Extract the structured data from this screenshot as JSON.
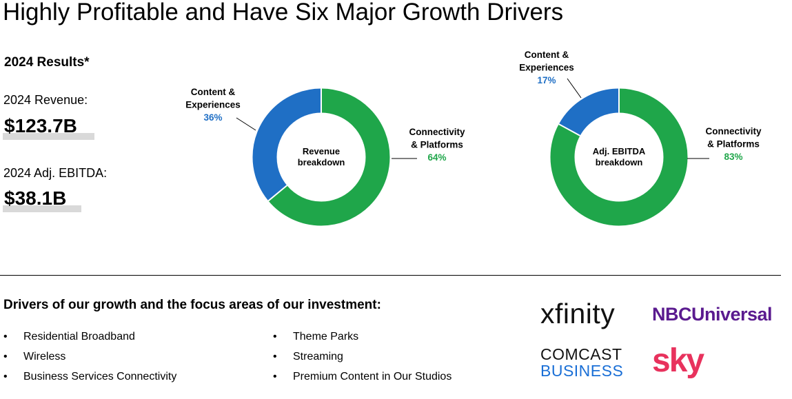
{
  "title": "Highly Profitable and Have Six Major Growth Drivers",
  "results": {
    "heading": "2024 Results*",
    "revenue_label": "2024 Revenue:",
    "revenue_value": "$123.7B",
    "ebitda_label": "2024 Adj. EBITDA:",
    "ebitda_value": "$38.1B"
  },
  "chart_data": [
    {
      "type": "pie",
      "variant": "donut",
      "title": "",
      "center_label": [
        "Revenue",
        "breakdown"
      ],
      "slices": [
        {
          "name": "Content & Experiences",
          "label_lines": [
            "Content &",
            "Experiences"
          ],
          "value": 36,
          "value_label": "36%",
          "color": "#1f6fc5"
        },
        {
          "name": "Connectivity & Platforms",
          "label_lines": [
            "Connectivity",
            "& Platforms"
          ],
          "value": 64,
          "value_label": "64%",
          "color": "#1fa64a"
        }
      ]
    },
    {
      "type": "pie",
      "variant": "donut",
      "title": "",
      "center_label": [
        "Adj. EBITDA",
        "breakdown"
      ],
      "slices": [
        {
          "name": "Content & Experiences",
          "label_lines": [
            "Content &",
            "Experiences"
          ],
          "value": 17,
          "value_label": "17%",
          "color": "#1f6fc5"
        },
        {
          "name": "Connectivity & Platforms",
          "label_lines": [
            "Connectivity",
            "& Platforms"
          ],
          "value": 83,
          "value_label": "83%",
          "color": "#1fa64a"
        }
      ]
    }
  ],
  "drivers": {
    "heading": "Drivers of our growth and the focus areas of our investment:",
    "bullet": "•",
    "left": [
      "Residential Broadband",
      "Wireless",
      "Business Services Connectivity"
    ],
    "right": [
      "Theme Parks",
      "Streaming",
      "Premium Content in Our Studios"
    ]
  },
  "logos": {
    "xfinity": "xfinity",
    "nbcuniversal": "NBCUniversal",
    "comcast": "COMCAST",
    "business": "BUSINESS",
    "sky": "sky"
  }
}
